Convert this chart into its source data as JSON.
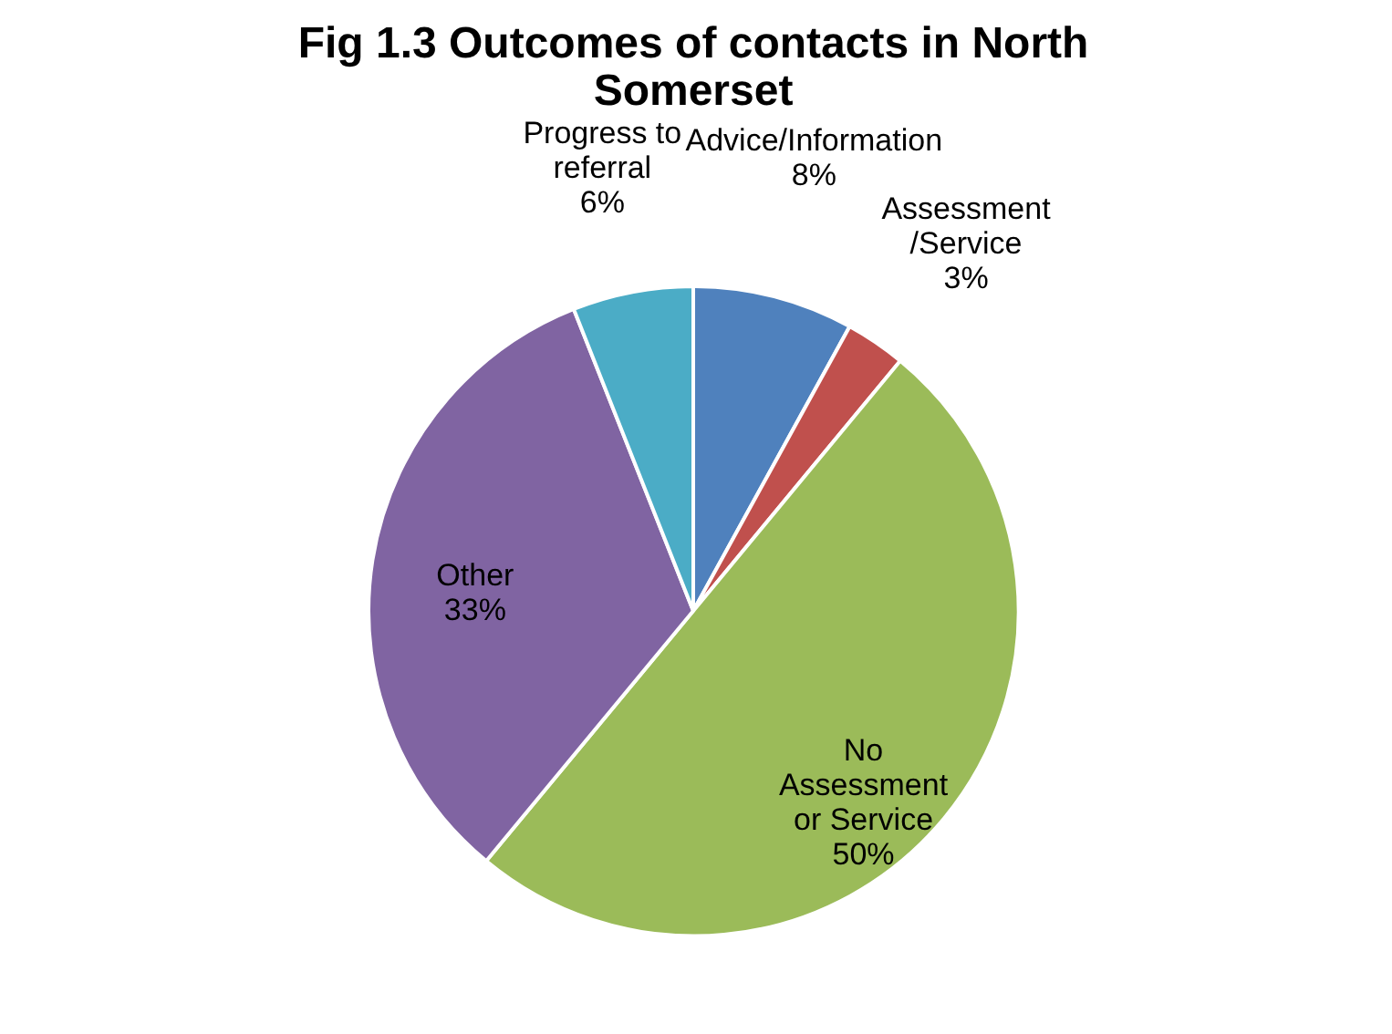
{
  "chart_data": {
    "type": "pie",
    "title": "Fig 1.3 Outcomes of contacts in North Somerset",
    "categories": [
      "Advice/Information",
      "Assessment /Service",
      "No Assessment or Service",
      "Other",
      "Progress to referral"
    ],
    "values": [
      8,
      3,
      50,
      33,
      6
    ],
    "value_labels": [
      "8%",
      "3%",
      "50%",
      "33%",
      "6%"
    ],
    "colors": [
      "#4f81bd",
      "#c0504d",
      "#9bbb59",
      "#8064a2",
      "#4bacc6"
    ],
    "legend": false
  }
}
